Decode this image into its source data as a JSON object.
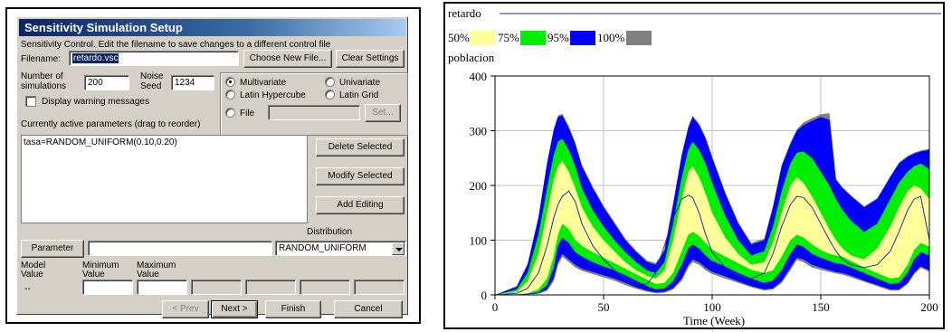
{
  "dialog": {
    "title": "Sensitivity Simulation Setup",
    "control_text": "Sensitivity Control.  Edit the filename to save changes to a different control file",
    "filename_label": "Filename:",
    "filename_value": "retardo.vsc",
    "choose_new_file_label": "Choose New File...",
    "clear_settings_label": "Clear Settings",
    "num_sim_label_1": "Number of",
    "num_sim_label_2": "simulations",
    "num_sim_value": "200",
    "noise_label_1": "Noise",
    "noise_label_2": "Seed",
    "noise_value": "1234",
    "warning_label": "Display warning messages",
    "warning_checked": false,
    "method_options": [
      "Multivariate",
      "Univariate",
      "Latin Hypercube",
      "Latin Grid",
      "File"
    ],
    "method_selected": "Multivariate",
    "file_set_label": "Set...",
    "active_params_label": "Currently active parameters (drag to reorder)",
    "active_params": [
      "tasa=RANDOM_UNIFORM(0.10,0.20)"
    ],
    "delete_selected_label": "Delete Selected",
    "modify_selected_label": "Modify Selected",
    "add_editing_label": "Add Editing",
    "distribution_label": "Distribution",
    "parameter_button_label": "Parameter",
    "parameter_value": "",
    "distribution_value": "RANDOM_UNIFORM",
    "model_value_label_1": "Model",
    "model_value_label_2": "Value",
    "model_value": "--",
    "min_label_1": "Minimum",
    "min_label_2": "Value",
    "max_label_1": "Maximum",
    "max_label_2": "Value",
    "prev_label": "< Prev",
    "next_label": "Next >",
    "finish_label": "Finish",
    "cancel_label": "Cancel"
  },
  "chart_data": {
    "type": "area",
    "title": "retardo",
    "ylabel": "poblacion",
    "xlabel": "Time (Week)",
    "xlim": [
      0,
      200
    ],
    "ylim": [
      0,
      400
    ],
    "xticks": [
      0,
      50,
      100,
      150,
      200
    ],
    "yticks": [
      0,
      100,
      200,
      300,
      400
    ],
    "grid": true,
    "legend": [
      {
        "label": "50%",
        "color": "#ffff99"
      },
      {
        "label": "75%",
        "color": "#00ee00"
      },
      {
        "label": "95%",
        "color": "#0000ff"
      },
      {
        "label": "100%",
        "color": "#808080"
      }
    ],
    "x": [
      0,
      10,
      15,
      20,
      24,
      27,
      29,
      31,
      34,
      37,
      40,
      45,
      50,
      55,
      60,
      65,
      70,
      74,
      78,
      82,
      86,
      89,
      91,
      94,
      97,
      100,
      106,
      112,
      118,
      124,
      128,
      132,
      136,
      139,
      142,
      146,
      150,
      154,
      157,
      160,
      164,
      170,
      176,
      182,
      186,
      190,
      193,
      196,
      200
    ],
    "bands": [
      {
        "name": "50%",
        "low": [
          0,
          1,
          3,
          10,
          30,
          70,
          110,
          130,
          120,
          100,
          90,
          78,
          68,
          58,
          48,
          38,
          28,
          20,
          22,
          40,
          80,
          110,
          115,
          108,
          95,
          83,
          70,
          58,
          46,
          40,
          45,
          70,
          100,
          110,
          105,
          92,
          82,
          75,
          72,
          70,
          62,
          50,
          40,
          30,
          32,
          55,
          82,
          95,
          88
        ],
        "high": [
          0,
          6,
          25,
          75,
          150,
          210,
          235,
          245,
          225,
          195,
          160,
          125,
          100,
          80,
          60,
          45,
          35,
          30,
          45,
          100,
          175,
          225,
          235,
          215,
          185,
          150,
          105,
          75,
          55,
          60,
          95,
          150,
          200,
          215,
          205,
          180,
          150,
          120,
          100,
          85,
          72,
          65,
          85,
          125,
          160,
          190,
          200,
          195,
          175
        ]
      },
      {
        "name": "75%",
        "low": [
          0,
          1,
          2,
          5,
          18,
          50,
          90,
          105,
          95,
          78,
          70,
          60,
          52,
          45,
          36,
          26,
          16,
          10,
          12,
          25,
          55,
          85,
          92,
          85,
          72,
          62,
          52,
          40,
          30,
          22,
          26,
          45,
          75,
          92,
          88,
          75,
          68,
          62,
          58,
          56,
          50,
          40,
          30,
          20,
          22,
          40,
          65,
          78,
          72
        ],
        "high": [
          0,
          10,
          40,
          110,
          195,
          255,
          280,
          285,
          265,
          235,
          195,
          155,
          125,
          100,
          78,
          60,
          45,
          40,
          60,
          130,
          215,
          265,
          280,
          265,
          240,
          205,
          145,
          100,
          72,
          80,
          125,
          190,
          240,
          260,
          262,
          250,
          225,
          200,
          175,
          155,
          135,
          115,
          130,
          175,
          205,
          225,
          235,
          240,
          230
        ]
      },
      {
        "name": "95%",
        "low": [
          0,
          0,
          1,
          3,
          10,
          30,
          60,
          75,
          65,
          55,
          48,
          42,
          36,
          30,
          22,
          14,
          8,
          5,
          6,
          12,
          30,
          55,
          65,
          60,
          50,
          42,
          34,
          25,
          16,
          10,
          12,
          25,
          50,
          68,
          65,
          55,
          50,
          45,
          42,
          40,
          35,
          26,
          18,
          10,
          10,
          22,
          40,
          52,
          45
        ],
        "high": [
          0,
          15,
          55,
          140,
          240,
          300,
          325,
          328,
          305,
          275,
          235,
          195,
          160,
          130,
          100,
          78,
          60,
          55,
          80,
          165,
          255,
          305,
          325,
          310,
          285,
          250,
          185,
          130,
          92,
          100,
          160,
          235,
          275,
          300,
          310,
          318,
          325,
          320,
          210,
          195,
          180,
          160,
          175,
          215,
          240,
          252,
          258,
          262,
          265
        ]
      },
      {
        "name": "100%",
        "low": [
          0,
          0,
          1,
          2,
          8,
          25,
          55,
          70,
          60,
          50,
          44,
          38,
          32,
          26,
          18,
          11,
          6,
          3,
          4,
          10,
          26,
          50,
          60,
          55,
          45,
          38,
          30,
          22,
          14,
          8,
          10,
          22,
          45,
          64,
          60,
          50,
          46,
          42,
          39,
          37,
          32,
          24,
          16,
          8,
          8,
          20,
          38,
          50,
          42
        ],
        "high": [
          0,
          16,
          57,
          143,
          243,
          303,
          328,
          331,
          308,
          278,
          238,
          198,
          163,
          133,
          103,
          81,
          63,
          58,
          83,
          168,
          258,
          308,
          328,
          313,
          288,
          253,
          188,
          133,
          95,
          103,
          163,
          238,
          278,
          303,
          315,
          323,
          330,
          332,
          212,
          197,
          182,
          162,
          177,
          217,
          242,
          254,
          260,
          264,
          267
        ]
      }
    ],
    "mean_line": {
      "color": "#2828b4",
      "values": [
        0,
        3,
        12,
        40,
        90,
        140,
        165,
        180,
        190,
        170,
        130,
        90,
        65,
        45,
        30,
        20,
        20,
        40,
        90,
        140,
        175,
        182,
        178,
        150,
        110,
        78,
        50,
        35,
        30,
        40,
        75,
        125,
        165,
        180,
        178,
        160,
        130,
        100,
        80,
        65,
        55,
        50,
        55,
        80,
        115,
        155,
        175,
        180,
        100
      ]
    }
  }
}
